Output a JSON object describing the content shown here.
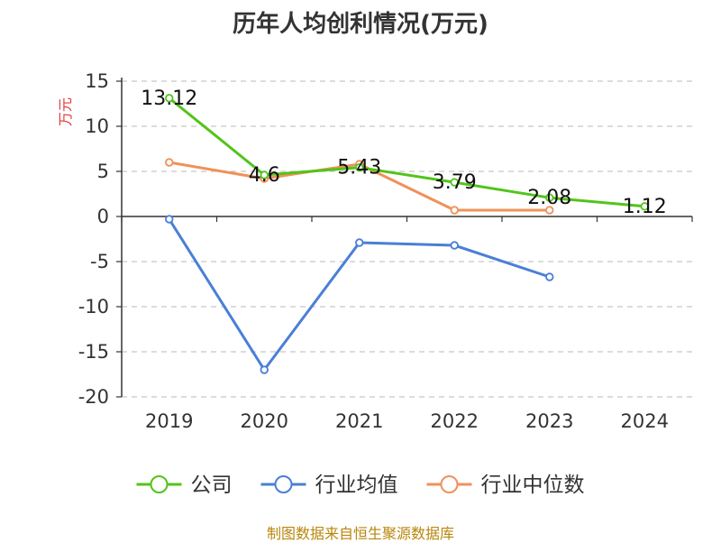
{
  "title": "历年人均创利情况(万元)",
  "source_note": "制图数据来自恒生聚源数据库",
  "chart_data": {
    "type": "line",
    "title": "历年人均创利情况(万元)",
    "ylabel": "万元",
    "xlabel": "",
    "categories": [
      "2019",
      "2020",
      "2021",
      "2022",
      "2023",
      "2024"
    ],
    "ylim": [
      -20,
      15
    ],
    "yticks": [
      15,
      10,
      5,
      0,
      -5,
      -10,
      -15,
      -20
    ],
    "grid": true,
    "legend_position": "bottom",
    "series": [
      {
        "name": "公司",
        "color": "#52c41a",
        "values": [
          13.12,
          4.6,
          5.43,
          3.79,
          2.08,
          1.12
        ],
        "labels": [
          "13.12",
          "4.6",
          "5.43",
          "3.79",
          "2.08",
          "1.12"
        ]
      },
      {
        "name": "行业均值",
        "color": "#4a7fd6",
        "values": [
          -0.3,
          -17.0,
          -2.9,
          -3.2,
          -6.7,
          null
        ],
        "labels": []
      },
      {
        "name": "行业中位数",
        "color": "#f0915a",
        "values": [
          6.0,
          4.2,
          5.8,
          0.7,
          0.7,
          null
        ],
        "labels": []
      }
    ],
    "unit_color": "#e23b3b"
  }
}
